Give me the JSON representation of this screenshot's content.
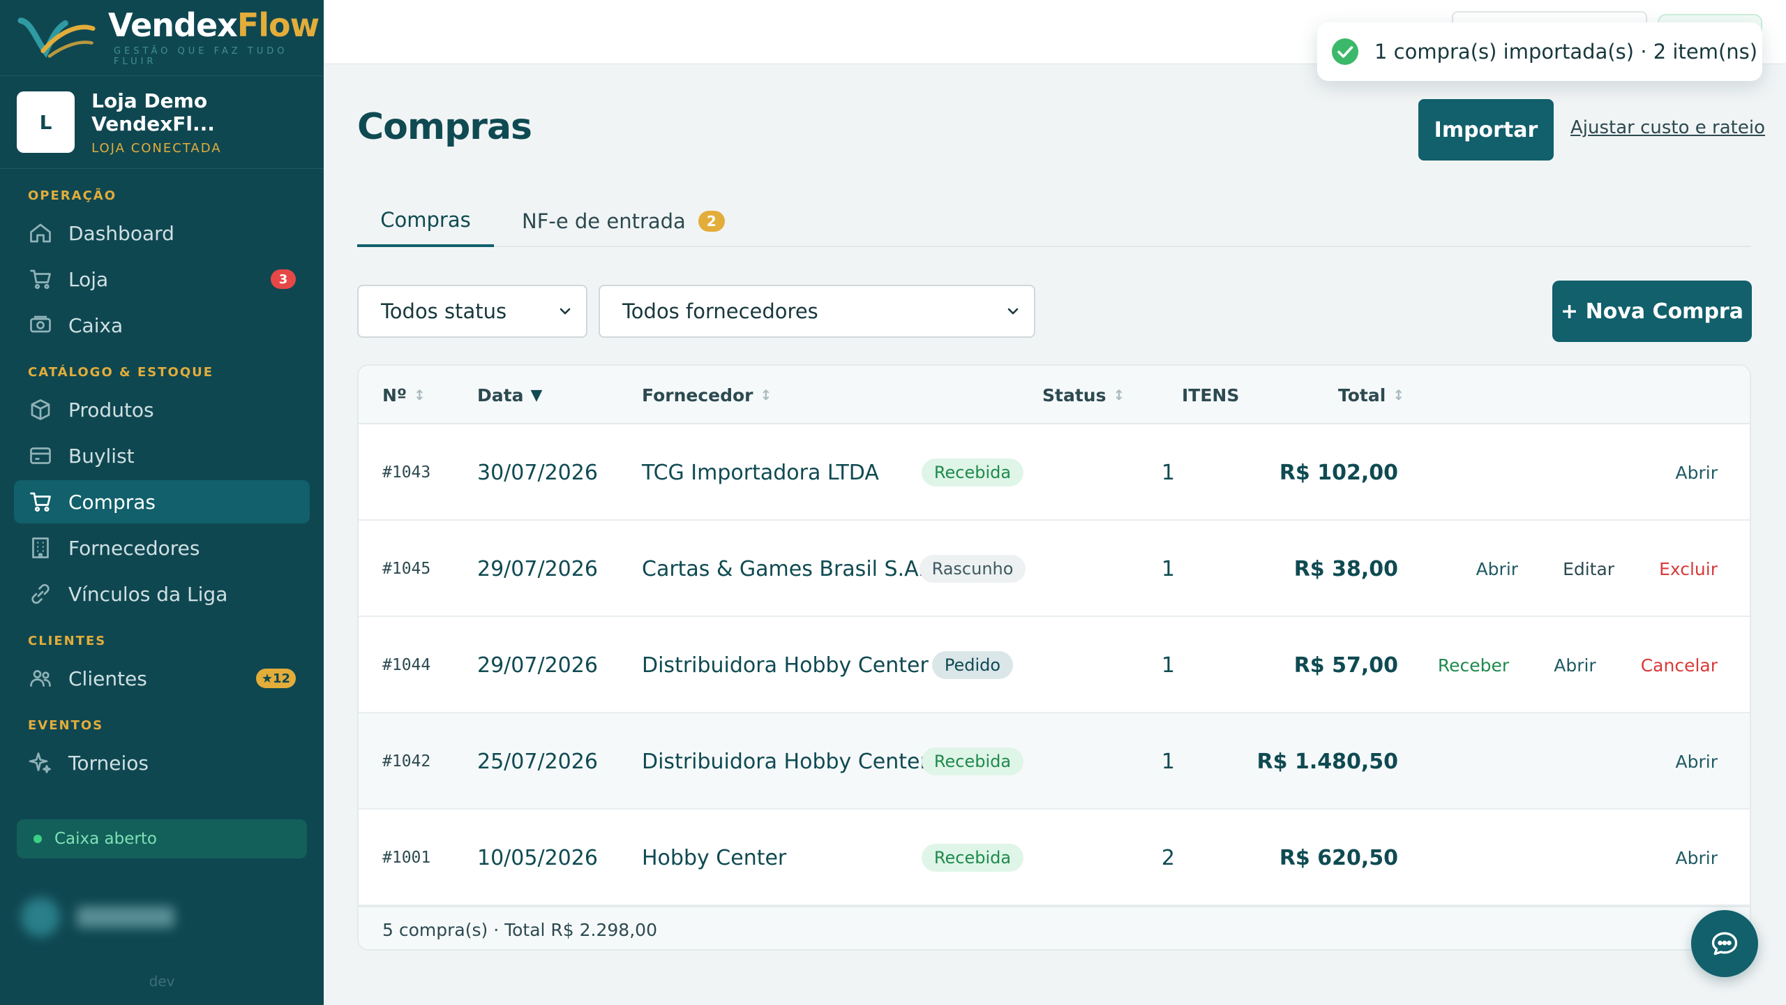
{
  "brand": {
    "name_part1": "Vendex",
    "name_part2": "Flow",
    "tagline": "GESTÃO QUE FAZ TUDO FLUIR"
  },
  "store": {
    "initial": "L",
    "name": "Loja Demo VendexFl...",
    "status": "LOJA CONECTADA"
  },
  "sidebar": {
    "sections": {
      "operacao": "OPERAÇÃO",
      "catalogo": "CATÁLOGO & ESTOQUE",
      "clientes": "CLIENTES",
      "eventos": "EVENTOS"
    },
    "items": {
      "dashboard": {
        "label": "Dashboard",
        "icon": "home-icon"
      },
      "loja": {
        "label": "Loja",
        "icon": "cart-icon",
        "badge": "3"
      },
      "caixa": {
        "label": "Caixa",
        "icon": "cash-register-icon"
      },
      "produtos": {
        "label": "Produtos",
        "icon": "box-icon"
      },
      "buylist": {
        "label": "Buylist",
        "icon": "card-icon"
      },
      "compras": {
        "label": "Compras",
        "icon": "cart-icon",
        "active": true
      },
      "fornecedores": {
        "label": "Fornecedores",
        "icon": "building-icon"
      },
      "vinculos": {
        "label": "Vínculos da Liga",
        "icon": "link-icon"
      },
      "clientes": {
        "label": "Clientes",
        "icon": "users-icon",
        "badge": "★12"
      },
      "torneios": {
        "label": "Torneios",
        "icon": "sparkle-icon"
      }
    },
    "cash_status": "Caixa aberto",
    "env": "dev"
  },
  "toast": {
    "message": "1 compra(s) importada(s) · 2 item(ns)",
    "icon": "check-circle-icon"
  },
  "page": {
    "title": "Compras",
    "import_button": "Importar",
    "adjust_link": "Ajustar custo e rateio",
    "tabs": [
      {
        "label": "Compras",
        "active": true
      },
      {
        "label": "NF-e de entrada",
        "badge": "2"
      }
    ],
    "filters": {
      "status": "Todos status",
      "fornecedor": "Todos fornecedores"
    },
    "new_button": "+ Nova Compra"
  },
  "table": {
    "headers": {
      "num": "Nº",
      "date": "Data",
      "supplier": "Fornecedor",
      "status": "Status",
      "items": "ITENS",
      "total": "Total"
    },
    "sort_icons": {
      "neutral": "↕",
      "desc": "▼"
    },
    "rows": [
      {
        "num": "#1043",
        "date": "30/07/2026",
        "supplier": "TCG Importadora LTDA",
        "status": "Recebida",
        "items": "1",
        "total": "R$ 102,00",
        "actions": [
          "Abrir"
        ]
      },
      {
        "num": "#1045",
        "date": "29/07/2026",
        "supplier": "Cartas & Games Brasil S.A.",
        "status": "Rascunho",
        "items": "1",
        "total": "R$ 38,00",
        "actions": [
          "Abrir",
          "Editar",
          "Excluir"
        ]
      },
      {
        "num": "#1044",
        "date": "29/07/2026",
        "supplier": "Distribuidora Hobby Center LTDA",
        "status": "Pedido",
        "items": "1",
        "total": "R$ 57,00",
        "actions": [
          "Receber",
          "Abrir",
          "Cancelar"
        ]
      },
      {
        "num": "#1042",
        "date": "25/07/2026",
        "supplier": "Distribuidora Hobby Center LTDA",
        "status": "Recebida",
        "items": "1",
        "total": "R$ 1.480,50",
        "actions": [
          "Abrir"
        ]
      },
      {
        "num": "#1001",
        "date": "10/05/2026",
        "supplier": "Hobby Center",
        "status": "Recebida",
        "items": "2",
        "total": "R$ 620,50",
        "actions": [
          "Abrir"
        ]
      }
    ],
    "footer": "5 compra(s) · Total R$ 2.298,00"
  },
  "colors": {
    "sidebar_bg": "#0f4751",
    "primary": "#11606b",
    "accent_gold": "#e3ad3a",
    "success": "#1f8a4c",
    "danger": "#d93a3a"
  }
}
